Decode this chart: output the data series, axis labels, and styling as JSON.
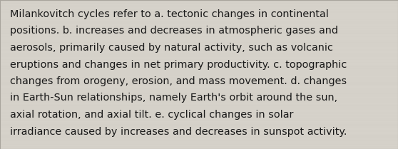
{
  "text_lines": [
    "Milankovitch cycles refer to a. tectonic changes in continental",
    "positions. b. increases and decreases in atmospheric gases and",
    "aerosols, primarily caused by natural activity, such as volcanic",
    "eruptions and changes in net primary productivity. c. topographic",
    "changes from orogeny, erosion, and mass movement. d. changes",
    "in Earth-Sun relationships, namely Earth's orbit around the sun,",
    "axial rotation, and axial tilt. e. cyclical changes in solar",
    "irradiance caused by increases and decreases in sunspot activity."
  ],
  "background_color": "#d6d2ca",
  "text_color": "#1a1a1a",
  "font_size": 10.4,
  "fig_width": 5.58,
  "fig_height": 2.09,
  "dpi": 100
}
